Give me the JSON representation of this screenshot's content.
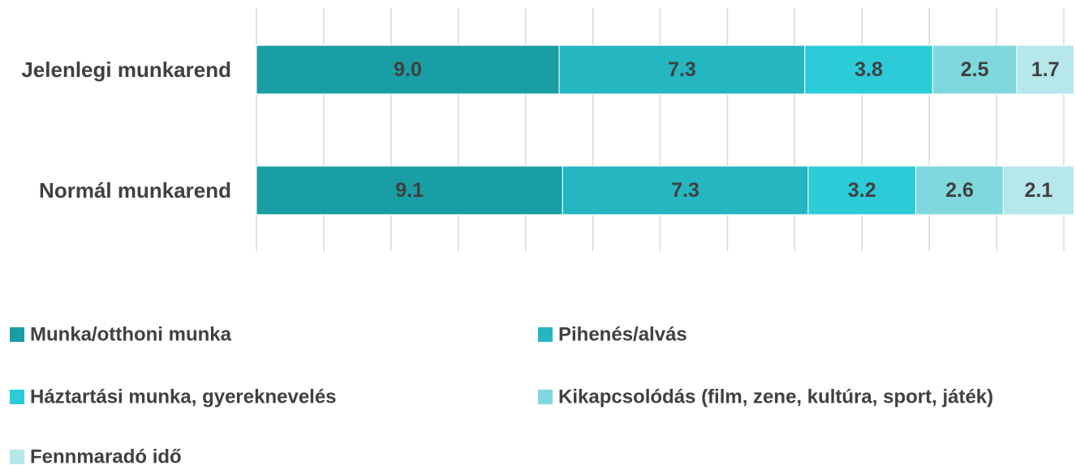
{
  "chart_data": {
    "type": "bar",
    "orientation": "horizontal",
    "stacked": true,
    "categories": [
      "Jelenlegi munkarend",
      "Normál munkarend"
    ],
    "series": [
      {
        "name": "Munka/otthoni munka",
        "values": [
          9.0,
          9.1
        ],
        "labels": [
          "9.0",
          "9.1"
        ],
        "color": "#1a9ea6"
      },
      {
        "name": "Pihenés/alvás",
        "values": [
          7.3,
          7.3
        ],
        "labels": [
          "7.3",
          "7.3"
        ],
        "color": "#24b6c1"
      },
      {
        "name": "Háztartási munka, gyereknevelés",
        "values": [
          3.8,
          3.2
        ],
        "labels": [
          "3.8",
          "3.2"
        ],
        "color": "#2bcbd8"
      },
      {
        "name": "Kikapcsolódás (film, zene, kultúra, sport, játék)",
        "values": [
          2.5,
          2.6
        ],
        "labels": [
          "2.5",
          "2.6"
        ],
        "color": "#7fd8de"
      },
      {
        "name": "Fennmaradó idő",
        "values": [
          1.7,
          2.1
        ],
        "labels": [
          "1.7",
          "2.1"
        ],
        "color": "#b6e7ea"
      }
    ],
    "xlim": [
      0,
      24
    ],
    "grid": true,
    "legend_position": "bottom",
    "title": "",
    "xlabel": "",
    "ylabel": ""
  }
}
